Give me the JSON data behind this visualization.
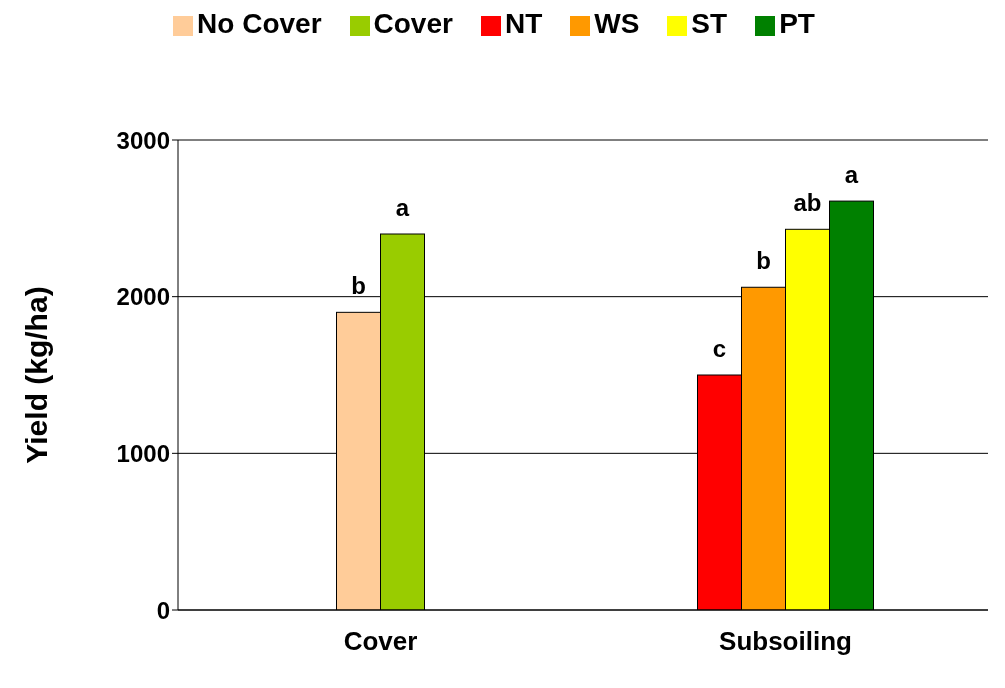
{
  "chart_data": {
    "type": "bar",
    "ylabel": "Yield (kg/ha)",
    "categories": [
      "Cover",
      "Subsoiling"
    ],
    "series": [
      {
        "name": "No Cover",
        "color": "#ffcc99",
        "values": [
          1900,
          null
        ],
        "value_labels": [
          "b",
          null
        ]
      },
      {
        "name": "Cover",
        "color": "#99cc00",
        "values": [
          2400,
          null
        ],
        "value_labels": [
          "a",
          null
        ]
      },
      {
        "name": "NT",
        "color": "#ff0000",
        "values": [
          null,
          1500
        ],
        "value_labels": [
          null,
          "c"
        ]
      },
      {
        "name": "WS",
        "color": "#ff9900",
        "values": [
          null,
          2060
        ],
        "value_labels": [
          null,
          "b"
        ]
      },
      {
        "name": "ST",
        "color": "#ffff00",
        "values": [
          null,
          2430
        ],
        "value_labels": [
          null,
          "ab"
        ]
      },
      {
        "name": "PT",
        "color": "#008000",
        "values": [
          null,
          2610
        ],
        "value_labels": [
          null,
          "a"
        ]
      }
    ],
    "ylim": [
      0,
      3000
    ],
    "yticks": [
      0,
      1000,
      2000,
      3000
    ],
    "grid": "y",
    "legend": "top"
  }
}
